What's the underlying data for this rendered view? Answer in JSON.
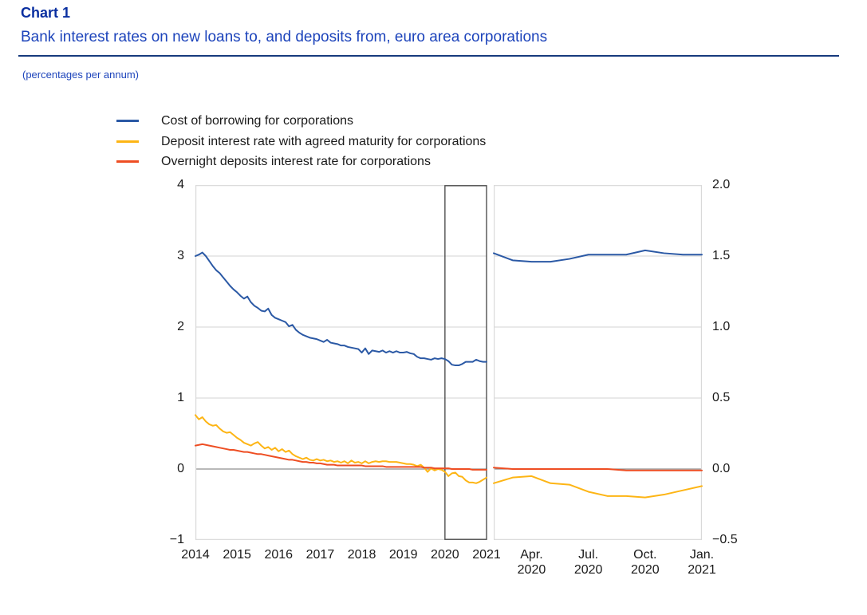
{
  "header": {
    "chart_label": "Chart 1",
    "title": "Bank interest rates on new loans to, and deposits from, euro area corporations",
    "unit_note": "(percentages per annum)"
  },
  "legend": [
    {
      "label": "Cost of borrowing for corporations",
      "color": "#2b59a5"
    },
    {
      "label": "Deposit interest rate with agreed maturity for corporations",
      "color": "#fdb515"
    },
    {
      "label": "Overnight deposits interest rate for corporations",
      "color": "#ee4e23"
    }
  ],
  "colors": {
    "blue": "#2b59a5",
    "yellow": "#fdb515",
    "red": "#ee4e23",
    "gridline": "#dcdcdc",
    "zero_line": "#8f8f8f",
    "panel_border": "#d9d9d9",
    "highlight_box": "#4f4f4f",
    "title_blue": "#0a2fa0",
    "subtitle_blue": "#1d44bb",
    "rule_navy": "#163a7d",
    "axis_text": "#1a1a1a"
  },
  "chart_data": {
    "type": "line",
    "title": "Bank interest rates on new loans to, and deposits from, euro area corporations",
    "ylabel": "percentages per annum",
    "grid": true,
    "legend_position": "top-left",
    "panels": [
      {
        "id": "left",
        "description": "Monthly series, Jan 2014 to Jan 2021",
        "frequency": "monthly",
        "ylim": [
          -1,
          4
        ],
        "ytick_values": [
          4,
          3,
          2,
          1,
          0,
          -1
        ],
        "ytick_labels": [
          "4",
          "3",
          "2",
          "1",
          "0",
          "−1"
        ],
        "yaxis_side": "left",
        "x_ticks": [
          {
            "lines": [
              "2014"
            ],
            "index": 0
          },
          {
            "lines": [
              "2015"
            ],
            "index": 12
          },
          {
            "lines": [
              "2016"
            ],
            "index": 24
          },
          {
            "lines": [
              "2017"
            ],
            "index": 36
          },
          {
            "lines": [
              "2018"
            ],
            "index": 48
          },
          {
            "lines": [
              "2019"
            ],
            "index": 60
          },
          {
            "lines": [
              "2020"
            ],
            "index": 72
          },
          {
            "lines": [
              "2021"
            ],
            "index": 84
          }
        ],
        "highlight_box": {
          "from_index": 72,
          "to_index": 84,
          "note": "zoom region shown in right panel"
        },
        "series": [
          {
            "name": "Cost of borrowing for corporations",
            "color": "#2b59a5",
            "values": [
              3.0,
              3.02,
              3.05,
              3.0,
              2.93,
              2.86,
              2.8,
              2.76,
              2.7,
              2.64,
              2.58,
              2.53,
              2.49,
              2.44,
              2.4,
              2.43,
              2.35,
              2.3,
              2.27,
              2.23,
              2.22,
              2.26,
              2.17,
              2.13,
              2.11,
              2.09,
              2.07,
              2.01,
              2.03,
              1.96,
              1.92,
              1.89,
              1.87,
              1.85,
              1.84,
              1.83,
              1.81,
              1.79,
              1.82,
              1.78,
              1.77,
              1.76,
              1.74,
              1.74,
              1.72,
              1.71,
              1.7,
              1.69,
              1.64,
              1.7,
              1.62,
              1.67,
              1.66,
              1.65,
              1.67,
              1.64,
              1.66,
              1.64,
              1.66,
              1.64,
              1.64,
              1.65,
              1.63,
              1.62,
              1.58,
              1.56,
              1.56,
              1.55,
              1.54,
              1.56,
              1.55,
              1.56,
              1.55,
              1.52,
              1.47,
              1.46,
              1.46,
              1.48,
              1.51,
              1.51,
              1.51,
              1.54,
              1.52,
              1.51,
              1.51
            ]
          },
          {
            "name": "Deposit interest rate with agreed maturity for corporations",
            "color": "#fdb515",
            "values": [
              0.76,
              0.7,
              0.73,
              0.67,
              0.63,
              0.61,
              0.62,
              0.57,
              0.53,
              0.51,
              0.52,
              0.48,
              0.44,
              0.41,
              0.37,
              0.35,
              0.33,
              0.36,
              0.38,
              0.33,
              0.29,
              0.31,
              0.27,
              0.3,
              0.25,
              0.28,
              0.24,
              0.26,
              0.21,
              0.18,
              0.16,
              0.14,
              0.16,
              0.13,
              0.12,
              0.14,
              0.12,
              0.13,
              0.11,
              0.12,
              0.1,
              0.11,
              0.09,
              0.11,
              0.08,
              0.12,
              0.09,
              0.1,
              0.08,
              0.11,
              0.08,
              0.1,
              0.11,
              0.1,
              0.11,
              0.11,
              0.1,
              0.1,
              0.1,
              0.09,
              0.08,
              0.07,
              0.07,
              0.06,
              0.04,
              0.06,
              0.02,
              -0.04,
              0.01,
              -0.02,
              0.0,
              -0.01,
              -0.04,
              -0.1,
              -0.06,
              -0.05,
              -0.1,
              -0.11,
              -0.16,
              -0.19,
              -0.19,
              -0.2,
              -0.18,
              -0.15,
              -0.12
            ]
          },
          {
            "name": "Overnight deposits interest rate for corporations",
            "color": "#ee4e23",
            "values": [
              0.33,
              0.34,
              0.35,
              0.34,
              0.33,
              0.32,
              0.31,
              0.3,
              0.29,
              0.28,
              0.27,
              0.27,
              0.26,
              0.25,
              0.24,
              0.24,
              0.23,
              0.22,
              0.21,
              0.21,
              0.2,
              0.19,
              0.18,
              0.17,
              0.16,
              0.15,
              0.14,
              0.13,
              0.13,
              0.12,
              0.11,
              0.1,
              0.1,
              0.09,
              0.09,
              0.08,
              0.08,
              0.07,
              0.06,
              0.06,
              0.06,
              0.05,
              0.05,
              0.05,
              0.05,
              0.05,
              0.05,
              0.05,
              0.05,
              0.04,
              0.04,
              0.04,
              0.04,
              0.04,
              0.04,
              0.03,
              0.03,
              0.03,
              0.03,
              0.03,
              0.03,
              0.03,
              0.03,
              0.03,
              0.03,
              0.03,
              0.02,
              0.02,
              0.02,
              0.01,
              0.01,
              0.01,
              0.01,
              0.01,
              0.0,
              0.0,
              0.0,
              0.0,
              0.0,
              0.0,
              -0.01,
              -0.01,
              -0.01,
              -0.01,
              -0.01
            ]
          }
        ]
      },
      {
        "id": "right",
        "description": "Monthly series, Feb 2020 to Jan 2021 (zoom of highlighted box)",
        "frequency": "monthly",
        "ylim": [
          -0.5,
          2.0
        ],
        "ytick_values": [
          2.0,
          1.5,
          1.0,
          0.5,
          0.0,
          -0.5
        ],
        "ytick_labels": [
          "2.0",
          "1.5",
          "1.0",
          "0.5",
          "0.0",
          "−0.5"
        ],
        "yaxis_side": "right",
        "x_ticks": [
          {
            "lines": [
              "Apr.",
              "2020"
            ],
            "index": 2
          },
          {
            "lines": [
              "Jul.",
              "2020"
            ],
            "index": 5
          },
          {
            "lines": [
              "Oct.",
              "2020"
            ],
            "index": 8
          },
          {
            "lines": [
              "Jan.",
              "2021"
            ],
            "index": 11
          }
        ],
        "series": [
          {
            "name": "Cost of borrowing for corporations",
            "color": "#2b59a5",
            "values": [
              1.52,
              1.47,
              1.46,
              1.46,
              1.48,
              1.51,
              1.51,
              1.51,
              1.54,
              1.52,
              1.51,
              1.51
            ]
          },
          {
            "name": "Deposit interest rate with agreed maturity for corporations",
            "color": "#fdb515",
            "values": [
              -0.1,
              -0.06,
              -0.05,
              -0.1,
              -0.11,
              -0.16,
              -0.19,
              -0.19,
              -0.2,
              -0.18,
              -0.15,
              -0.12
            ]
          },
          {
            "name": "Overnight deposits interest rate for corporations",
            "color": "#ee4e23",
            "values": [
              0.01,
              0.0,
              0.0,
              0.0,
              0.0,
              0.0,
              0.0,
              -0.01,
              -0.01,
              -0.01,
              -0.01,
              -0.01
            ]
          }
        ]
      }
    ]
  }
}
